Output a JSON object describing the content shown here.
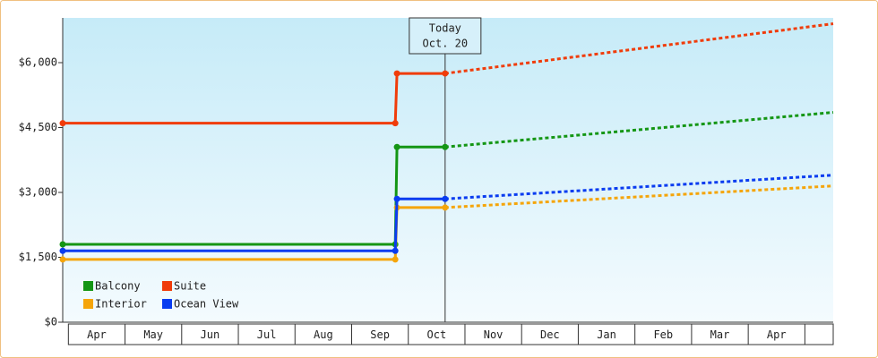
{
  "chart_data": {
    "type": "line",
    "categories": [
      "Apr",
      "May",
      "Jun",
      "Jul",
      "Aug",
      "Sep",
      "Oct",
      "Nov",
      "Dec",
      "Jan",
      "Feb",
      "Mar",
      "Apr"
    ],
    "x": [
      -0.1,
      5.77,
      5.8,
      6.65
    ],
    "projection_x": [
      6.65,
      13.5
    ],
    "xlim": [
      -0.1,
      13.5
    ],
    "ylim": [
      0,
      7000
    ],
    "yticks": [
      {
        "value": 0,
        "label": "$0"
      },
      {
        "value": 1500,
        "label": "$1,500"
      },
      {
        "value": 3000,
        "label": "$3,000"
      },
      {
        "value": 4500,
        "label": "$4,500"
      },
      {
        "value": 6000,
        "label": "$6,000"
      }
    ],
    "today": {
      "x": 6.65,
      "label": [
        "Today",
        "Oct. 20"
      ]
    },
    "legend": "lower left",
    "series": [
      {
        "name": "Balcony",
        "color": "#149614",
        "values": [
          1800,
          1800,
          4050,
          4050
        ],
        "projection": [
          4050,
          4850
        ]
      },
      {
        "name": "Suite",
        "color": "#f03c0a",
        "values": [
          4600,
          4600,
          5750,
          5750
        ],
        "projection": [
          5750,
          6900
        ]
      },
      {
        "name": "Interior",
        "color": "#f5a50a",
        "values": [
          1450,
          1450,
          2650,
          2650
        ],
        "projection": [
          2650,
          3150
        ]
      },
      {
        "name": "Ocean View",
        "color": "#0a3cf0",
        "values": [
          1650,
          1650,
          2850,
          2850
        ],
        "projection": [
          2850,
          3400
        ]
      }
    ]
  }
}
